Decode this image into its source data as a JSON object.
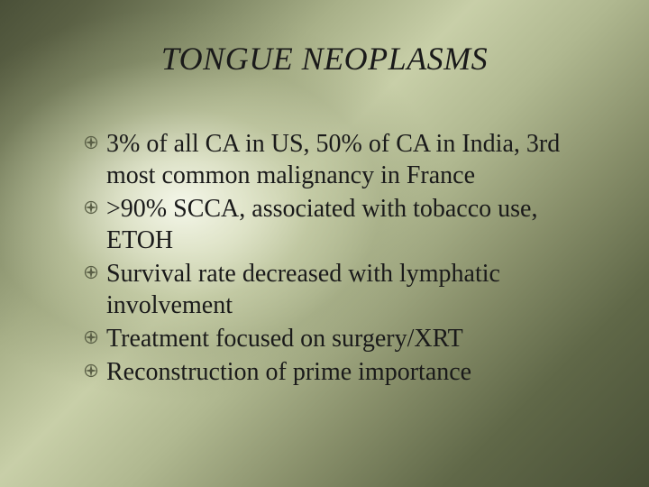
{
  "slide": {
    "title": "TONGUE NEOPLASMS",
    "title_fontsize": 36,
    "title_color": "#1a1a1a",
    "title_font_style": "italic",
    "body_fontsize": 28,
    "body_color": "#1a1a1a",
    "bullet_color": "#5a5f46",
    "bullets": [
      {
        "text": "3% of all CA in US, 50% of CA in India, 3rd most common malignancy in France"
      },
      {
        "text": ">90% SCCA, associated with tobacco use, ETOH"
      },
      {
        "text": "Survival rate decreased with lymphatic involvement"
      },
      {
        "text": "Treatment focused on surgery/XRT"
      },
      {
        "text": "Reconstruction of prime importance"
      }
    ],
    "background": {
      "type": "radial-soft-glow",
      "glow_center_color": "#f8faee",
      "mid_color": "#a8b088",
      "edge_color": "#484f36"
    }
  }
}
